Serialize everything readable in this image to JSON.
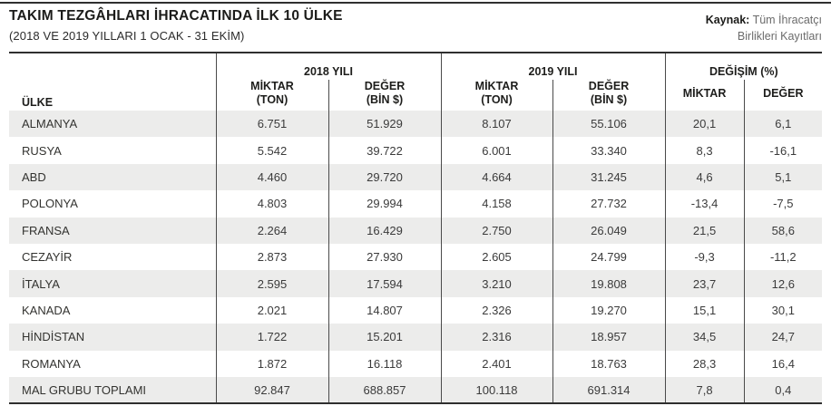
{
  "page": {
    "title": "TAKIM TEZGÂHLARI İHRACATINDA İLK 10 ÜLKE",
    "subtitle": "(2018 VE 2019 YILLARI 1 OCAK - 31 EKİM)",
    "source": {
      "label": "Kaynak:",
      "line1": " Tüm İhracatçı",
      "line2": "Birlikleri Kayıtları"
    }
  },
  "table": {
    "country_header": "ÜLKE",
    "groups": {
      "y2018": "2018 YILI",
      "y2019": "2019 YILI",
      "change": "DEĞİŞİM (%)"
    },
    "subheaders": {
      "miktar": "MİKTAR",
      "ton": "(TON)",
      "deger": "DEĞER",
      "bin": "(BİN $)",
      "miktar_plain": "MİKTAR",
      "deger_plain": "DEĞER"
    },
    "rows": [
      {
        "country": "ALMANYA",
        "miktar_2018": "6.751",
        "deger_2018": "51.929",
        "miktar_2019": "8.107",
        "deger_2019": "55.106",
        "degisim_miktar": "20,1",
        "degisim_deger": "6,1"
      },
      {
        "country": "RUSYA",
        "miktar_2018": "5.542",
        "deger_2018": "39.722",
        "miktar_2019": "6.001",
        "deger_2019": "33.340",
        "degisim_miktar": "8,3",
        "degisim_deger": "-16,1"
      },
      {
        "country": "ABD",
        "miktar_2018": "4.460",
        "deger_2018": "29.720",
        "miktar_2019": "4.664",
        "deger_2019": "31.245",
        "degisim_miktar": "4,6",
        "degisim_deger": "5,1"
      },
      {
        "country": "POLONYA",
        "miktar_2018": "4.803",
        "deger_2018": "29.994",
        "miktar_2019": "4.158",
        "deger_2019": "27.732",
        "degisim_miktar": "-13,4",
        "degisim_deger": "-7,5"
      },
      {
        "country": "FRANSA",
        "miktar_2018": "2.264",
        "deger_2018": "16.429",
        "miktar_2019": "2.750",
        "deger_2019": "26.049",
        "degisim_miktar": "21,5",
        "degisim_deger": "58,6"
      },
      {
        "country": "CEZAYİR",
        "miktar_2018": "2.873",
        "deger_2018": "27.930",
        "miktar_2019": "2.605",
        "deger_2019": "24.799",
        "degisim_miktar": "-9,3",
        "degisim_deger": "-11,2"
      },
      {
        "country": "İTALYA",
        "miktar_2018": "2.595",
        "deger_2018": "17.594",
        "miktar_2019": "3.210",
        "deger_2019": "19.808",
        "degisim_miktar": "23,7",
        "degisim_deger": "12,6"
      },
      {
        "country": "KANADA",
        "miktar_2018": "2.021",
        "deger_2018": "14.807",
        "miktar_2019": "2.326",
        "deger_2019": "19.270",
        "degisim_miktar": "15,1",
        "degisim_deger": "30,1"
      },
      {
        "country": "HİNDİSTAN",
        "miktar_2018": "1.722",
        "deger_2018": "15.201",
        "miktar_2019": "2.316",
        "deger_2019": "18.957",
        "degisim_miktar": "34,5",
        "degisim_deger": "24,7"
      },
      {
        "country": "ROMANYA",
        "miktar_2018": "1.872",
        "deger_2018": "16.118",
        "miktar_2019": "2.401",
        "deger_2019": "18.763",
        "degisim_miktar": "28,3",
        "degisim_deger": "16,4"
      },
      {
        "country": "MAL GRUBU TOPLAMI",
        "miktar_2018": "92.847",
        "deger_2018": "688.857",
        "miktar_2019": "100.118",
        "deger_2019": "691.314",
        "degisim_miktar": "7,8",
        "degisim_deger": "0,4"
      }
    ]
  },
  "chart_data": {
    "type": "table",
    "title": "TAKIM TEZGÂHLARI İHRACATINDA İLK 10 ÜLKE (2018 VE 2019 YILLARI 1 OCAK - 31 EKİM)",
    "source": "Kaynak: Tüm İhracatçı Birlikleri Kayıtları",
    "columns": [
      "ÜLKE",
      "2018 YILI MİKTAR (TON)",
      "2018 YILI DEĞER (BİN $)",
      "2019 YILI MİKTAR (TON)",
      "2019 YILI DEĞER (BİN $)",
      "DEĞİŞİM (%) MİKTAR",
      "DEĞİŞİM (%) DEĞER"
    ],
    "rows_numeric": [
      [
        "ALMANYA",
        6751,
        51929,
        8107,
        55106,
        20.1,
        6.1
      ],
      [
        "RUSYA",
        5542,
        39722,
        6001,
        33340,
        8.3,
        -16.1
      ],
      [
        "ABD",
        4460,
        29720,
        4664,
        31245,
        4.6,
        5.1
      ],
      [
        "POLONYA",
        4803,
        29994,
        4158,
        27732,
        -13.4,
        -7.5
      ],
      [
        "FRANSA",
        2264,
        16429,
        2750,
        26049,
        21.5,
        58.6
      ],
      [
        "CEZAYİR",
        2873,
        27930,
        2605,
        24799,
        -9.3,
        -11.2
      ],
      [
        "İTALYA",
        2595,
        17594,
        3210,
        19808,
        23.7,
        12.6
      ],
      [
        "KANADA",
        2021,
        14807,
        2326,
        19270,
        15.1,
        30.1
      ],
      [
        "HİNDİSTAN",
        1722,
        15201,
        2316,
        18957,
        34.5,
        24.7
      ],
      [
        "ROMANYA",
        1872,
        16118,
        2401,
        18763,
        28.3,
        16.4
      ],
      [
        "MAL GRUBU TOPLAMI",
        92847,
        688857,
        100118,
        691314,
        7.8,
        0.4
      ]
    ],
    "layout": {
      "zebra_color": "#ececeb",
      "rule_color": "#2f2f2f",
      "grid": "vertical-only"
    }
  }
}
